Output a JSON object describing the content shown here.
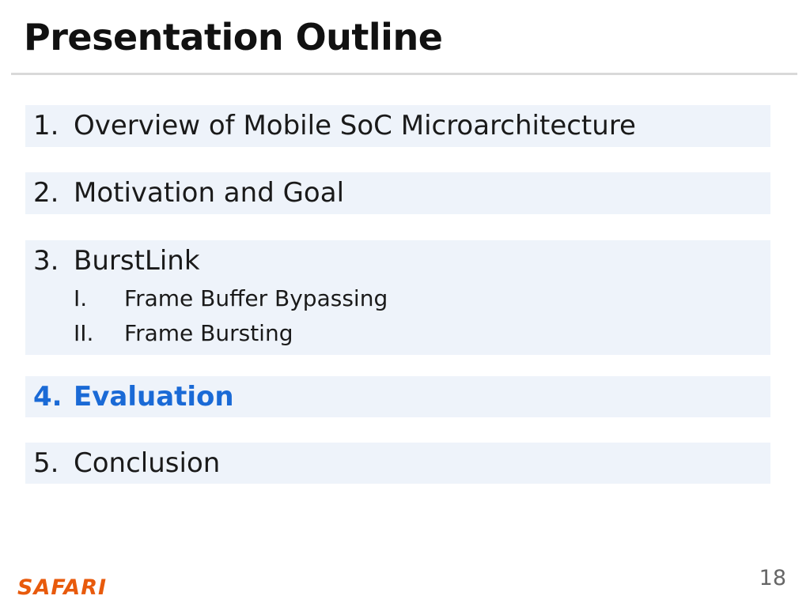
{
  "slide": {
    "title": "Presentation Outline",
    "page_number": "18",
    "logo_text": "SAFARI"
  },
  "outline": {
    "items": [
      {
        "number": "1.",
        "label": "Overview of Mobile SoC Microarchitecture"
      },
      {
        "number": "2.",
        "label": "Motivation and Goal"
      },
      {
        "number": "3.",
        "label": "BurstLink",
        "subitems": [
          {
            "number": "I.",
            "label": "Frame Buffer Bypassing"
          },
          {
            "number": "II.",
            "label": "Frame Bursting"
          }
        ]
      },
      {
        "number": "4.",
        "label": "Evaluation",
        "active": true
      },
      {
        "number": "5.",
        "label": "Conclusion"
      }
    ]
  },
  "colors": {
    "active_item": "#1a6ad6",
    "item_background": "#eef3fa",
    "logo": "#e85a0c"
  }
}
